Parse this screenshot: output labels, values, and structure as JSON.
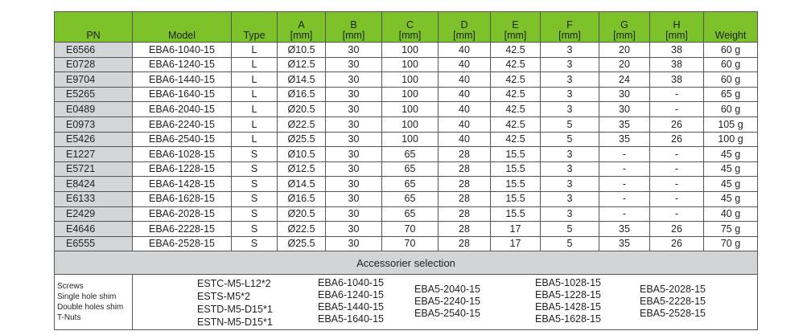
{
  "header": {
    "pn": "PN",
    "model": "Model",
    "type": "Type",
    "dims": [
      {
        "letter": "A",
        "unit": "[mm]"
      },
      {
        "letter": "B",
        "unit": "[mm]"
      },
      {
        "letter": "C",
        "unit": "[mm]"
      },
      {
        "letter": "D",
        "unit": "[mm]"
      },
      {
        "letter": "E",
        "unit": "[mm]"
      },
      {
        "letter": "F",
        "unit": "[mm]"
      },
      {
        "letter": "G",
        "unit": "[mm]"
      },
      {
        "letter": "H",
        "unit": "[mm]"
      }
    ],
    "weight": "Weight"
  },
  "rows": [
    [
      "E6566",
      "EBA6-1040-15",
      "L",
      "Ø10.5",
      "30",
      "100",
      "40",
      "42.5",
      "3",
      "20",
      "38",
      "60 g"
    ],
    [
      "E0728",
      "EBA6-1240-15",
      "L",
      "Ø12.5",
      "30",
      "100",
      "40",
      "42.5",
      "3",
      "20",
      "38",
      "60 g"
    ],
    [
      "E9704",
      "EBA6-1440-15",
      "L",
      "Ø14.5",
      "30",
      "100",
      "40",
      "42.5",
      "3",
      "24",
      "38",
      "60 g"
    ],
    [
      "E5265",
      "EBA6-1640-15",
      "L",
      "Ø16.5",
      "30",
      "100",
      "40",
      "42.5",
      "3",
      "30",
      "-",
      "65 g"
    ],
    [
      "E0489",
      "EBA6-2040-15",
      "L",
      "Ø20.5",
      "30",
      "100",
      "40",
      "42.5",
      "3",
      "30",
      "-",
      "60 g"
    ],
    [
      "E0973",
      "EBA6-2240-15",
      "L",
      "Ø22.5",
      "30",
      "100",
      "40",
      "42.5",
      "5",
      "35",
      "26",
      "105 g"
    ],
    [
      "E5426",
      "EBA6-2540-15",
      "L",
      "Ø25.5",
      "30",
      "100",
      "40",
      "42.5",
      "5",
      "35",
      "26",
      "100 g"
    ],
    [
      "E1227",
      "EBA6-1028-15",
      "S",
      "Ø10.5",
      "30",
      "65",
      "28",
      "15.5",
      "3",
      "-",
      "-",
      "45 g"
    ],
    [
      "E5721",
      "EBA6-1228-15",
      "S",
      "Ø12.5",
      "30",
      "65",
      "28",
      "15.5",
      "3",
      "-",
      "-",
      "45 g"
    ],
    [
      "E8424",
      "EBA6-1428-15",
      "S",
      "Ø14.5",
      "30",
      "65",
      "28",
      "15.5",
      "3",
      "-",
      "-",
      "45 g"
    ],
    [
      "E6133",
      "EBA6-1628-15",
      "S",
      "Ø16.5",
      "30",
      "65",
      "28",
      "15.5",
      "3",
      "-",
      "-",
      "45 g"
    ],
    [
      "E2429",
      "EBA6-2028-15",
      "S",
      "Ø20.5",
      "30",
      "65",
      "28",
      "15.5",
      "3",
      "-",
      "-",
      "40 g"
    ],
    [
      "E4646",
      "EBA6-2228-15",
      "S",
      "Ø22.5",
      "30",
      "70",
      "28",
      "17",
      "5",
      "35",
      "26",
      "75 g"
    ],
    [
      "E6555",
      "EBA6-2528-15",
      "S",
      "Ø25.5",
      "30",
      "70",
      "28",
      "17",
      "5",
      "35",
      "26",
      "70 g"
    ]
  ],
  "accessories": {
    "title": "Accessorier selection",
    "labels": [
      "Screws",
      "Single hole shim",
      "Double holes shim",
      "T-Nuts"
    ],
    "columns": [
      [
        "ESTC-M5-L12*2",
        "ESTS-M5*2",
        "ESTD-M5-D15*1",
        "ESTN-M5-D15*1"
      ],
      [
        "EBA6-1040-15",
        "EBA6-1240-15",
        "EBA5-1440-15",
        "EBA5-1640-15"
      ],
      [
        "EBA5-2040-15",
        "EBA5-2240-15",
        "EBA5-2540-15"
      ],
      [
        "EBA5-1028-15",
        "EBA5-1228-15",
        "EBA5-1428-15",
        "EBA5-1628-15"
      ],
      [
        "EBA5-2028-15",
        "EBA5-2228-15",
        "EBA5-2528-15"
      ]
    ]
  },
  "colors": {
    "header_green": "#7dc22a",
    "pn_gray": "#d3d6d9"
  }
}
